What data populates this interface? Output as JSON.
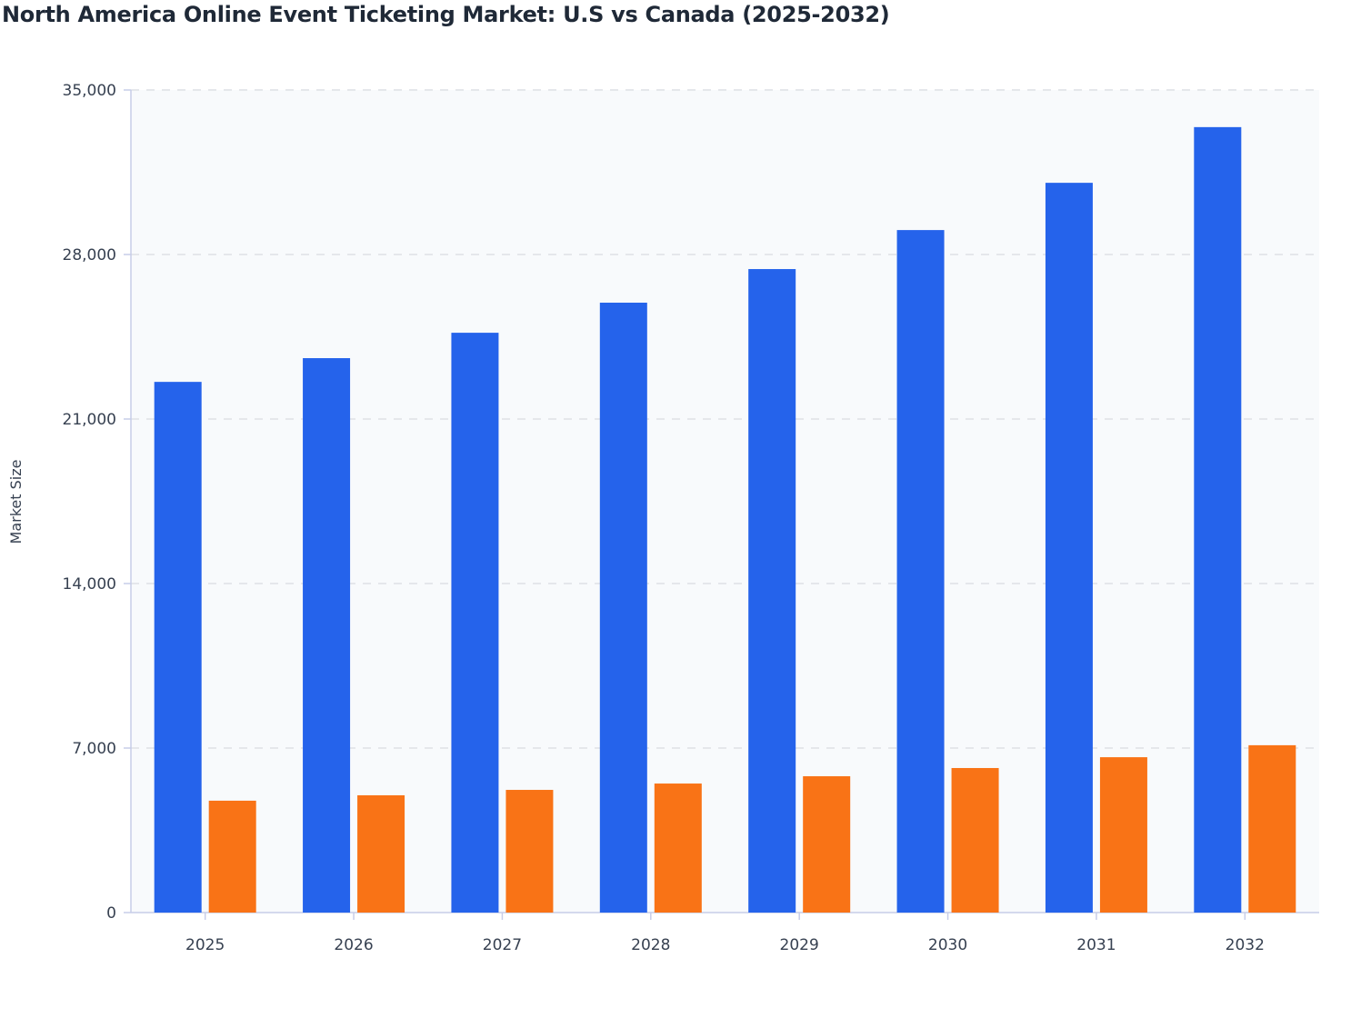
{
  "chart_data": {
    "type": "bar",
    "title": "North America Online Event Ticketing Market: U.S vs Canada (2025-2032)",
    "xlabel": "",
    "ylabel": "Market Size",
    "ylim": [
      0,
      35000
    ],
    "yticks": [
      "0",
      "7,000",
      "14,000",
      "21,000",
      "28,000",
      "35,000"
    ],
    "ytick_values": [
      0,
      7000,
      14000,
      21000,
      28000,
      35000
    ],
    "categories": [
      "2025",
      "2026",
      "2027",
      "2028",
      "2029",
      "2030",
      "2031",
      "2032"
    ],
    "grid": true,
    "legend": "none",
    "series": [
      {
        "values": [
          22580,
          23590,
          24670,
          25950,
          27380,
          29040,
          31050,
          33420
        ],
        "color": "#2563eb"
      },
      {
        "values": [
          4760,
          4990,
          5220,
          5490,
          5800,
          6150,
          6610,
          7120
        ],
        "color": "#f97316"
      }
    ],
    "plot_background": "#f8fafc"
  }
}
